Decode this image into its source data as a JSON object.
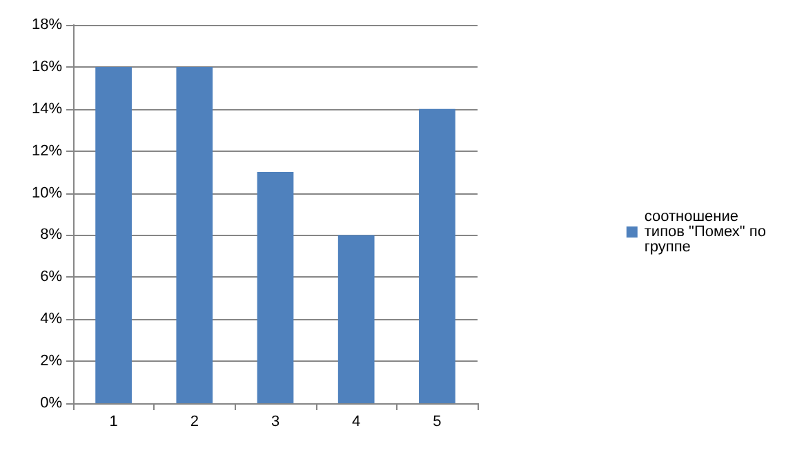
{
  "chart_data": {
    "type": "bar",
    "categories": [
      "1",
      "2",
      "3",
      "4",
      "5"
    ],
    "series": [
      {
        "name": "соотношение типов \"Помех\" по группе",
        "color": "#4f81bd",
        "values": [
          16,
          16,
          11,
          8,
          14
        ]
      }
    ],
    "ylim": [
      0,
      18
    ],
    "yticks": [
      {
        "value": 0,
        "label": "0%"
      },
      {
        "value": 2,
        "label": "2%"
      },
      {
        "value": 4,
        "label": "4%"
      },
      {
        "value": 6,
        "label": "6%"
      },
      {
        "value": 8,
        "label": "8%"
      },
      {
        "value": 10,
        "label": "10%"
      },
      {
        "value": 12,
        "label": "12%"
      },
      {
        "value": 14,
        "label": "14%"
      },
      {
        "value": 16,
        "label": "16%"
      },
      {
        "value": 18,
        "label": "18%"
      }
    ],
    "grid": "y",
    "legend": "right"
  }
}
